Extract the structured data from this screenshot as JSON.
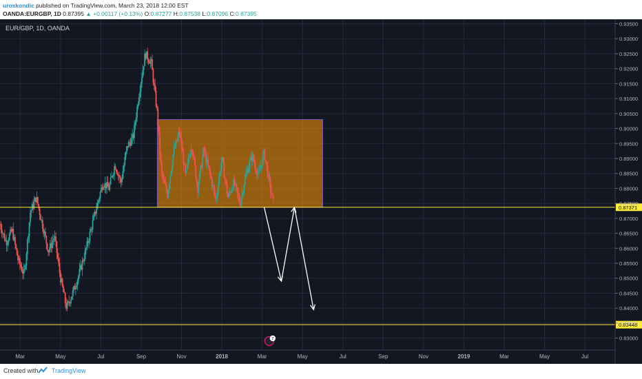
{
  "header": {
    "username": "uroskondic",
    "published": " published on TradingView.com, March 23, 2018 12:00 EST",
    "symbol": "OANDA:EURGBP, 1D",
    "last": "0.87395",
    "change": "▲ +0.00117 (+0.13%)",
    "o_label": "O:",
    "o_value": "0.87277",
    "h_label": "H:",
    "h_value": "0.87538",
    "l_label": "L:",
    "l_value": "0.87096",
    "c_label": "C:",
    "c_value": "0.87395"
  },
  "chart_title": "EUR/GBP, 1D, OANDA",
  "footer": {
    "created": "Created with",
    "brand": "TradingView"
  },
  "colors": {
    "background": "#131722",
    "grid": "#242a3a",
    "up": "#26a69a",
    "down": "#ef5350",
    "box": "#ff9800",
    "level": "#ffeb3b",
    "arrow": "#ffffff"
  },
  "chart_data": {
    "type": "candlestick",
    "yaxis": {
      "min": 0.826,
      "max": 0.9365,
      "ticks": [
        "0.93500",
        "0.93000",
        "0.92500",
        "0.92000",
        "0.91500",
        "0.91000",
        "0.90500",
        "0.90000",
        "0.89500",
        "0.89000",
        "0.88500",
        "0.88000",
        "0.87500",
        "0.87000",
        "0.86500",
        "0.86000",
        "0.85500",
        "0.85000",
        "0.84500",
        "0.84000",
        "0.83500",
        "0.83000"
      ]
    },
    "xaxis": {
      "ticks": [
        "Mar",
        "May",
        "Jul",
        "Sep",
        "Nov",
        "2018",
        "Mar",
        "May",
        "Jul",
        "Sep",
        "Nov",
        "2019",
        "Mar",
        "May",
        "Jul"
      ],
      "tick_months": [
        2,
        4,
        6,
        8,
        10,
        12,
        14,
        16,
        18,
        20,
        22,
        24,
        26,
        28,
        30
      ],
      "start_month": 1.0,
      "end_month": 31.5
    },
    "price_path": [
      [
        1.0,
        0.868
      ],
      [
        1.3,
        0.862
      ],
      [
        1.6,
        0.866
      ],
      [
        1.9,
        0.856
      ],
      [
        2.2,
        0.851
      ],
      [
        2.5,
        0.872
      ],
      [
        2.8,
        0.877
      ],
      [
        3.1,
        0.868
      ],
      [
        3.4,
        0.859
      ],
      [
        3.7,
        0.864
      ],
      [
        4.0,
        0.85
      ],
      [
        4.3,
        0.84
      ],
      [
        4.6,
        0.845
      ],
      [
        4.9,
        0.851
      ],
      [
        5.2,
        0.858
      ],
      [
        5.5,
        0.866
      ],
      [
        5.8,
        0.874
      ],
      [
        6.1,
        0.882
      ],
      [
        6.4,
        0.88
      ],
      [
        6.7,
        0.888
      ],
      [
        7.0,
        0.882
      ],
      [
        7.3,
        0.894
      ],
      [
        7.6,
        0.897
      ],
      [
        7.9,
        0.912
      ],
      [
        8.2,
        0.925
      ],
      [
        8.5,
        0.922
      ],
      [
        8.8,
        0.905
      ],
      [
        9.0,
        0.885
      ],
      [
        9.3,
        0.878
      ],
      [
        9.6,
        0.892
      ],
      [
        9.9,
        0.899
      ],
      [
        10.2,
        0.884
      ],
      [
        10.5,
        0.895
      ],
      [
        10.8,
        0.88
      ],
      [
        11.1,
        0.893
      ],
      [
        11.4,
        0.885
      ],
      [
        11.7,
        0.876
      ],
      [
        12.0,
        0.89
      ],
      [
        12.3,
        0.877
      ],
      [
        12.6,
        0.882
      ],
      [
        12.9,
        0.875
      ],
      [
        13.2,
        0.885
      ],
      [
        13.5,
        0.891
      ],
      [
        13.8,
        0.884
      ],
      [
        14.1,
        0.892
      ],
      [
        14.4,
        0.88
      ],
      [
        14.6,
        0.874
      ]
    ],
    "annotations": {
      "box": {
        "start_month": 8.8,
        "end_month": 17.0,
        "price_top": 0.903,
        "price_bottom": 0.8737
      },
      "levels": [
        {
          "price": 0.87371,
          "label": "0.87371"
        },
        {
          "price": 0.83448,
          "label": "0.83448"
        }
      ],
      "path": [
        [
          14.1,
          0.8737
        ],
        [
          14.95,
          0.849
        ],
        [
          15.6,
          0.8737
        ],
        [
          16.55,
          0.8395
        ]
      ]
    },
    "events": [
      {
        "month": 14.35,
        "label": "7"
      }
    ]
  }
}
